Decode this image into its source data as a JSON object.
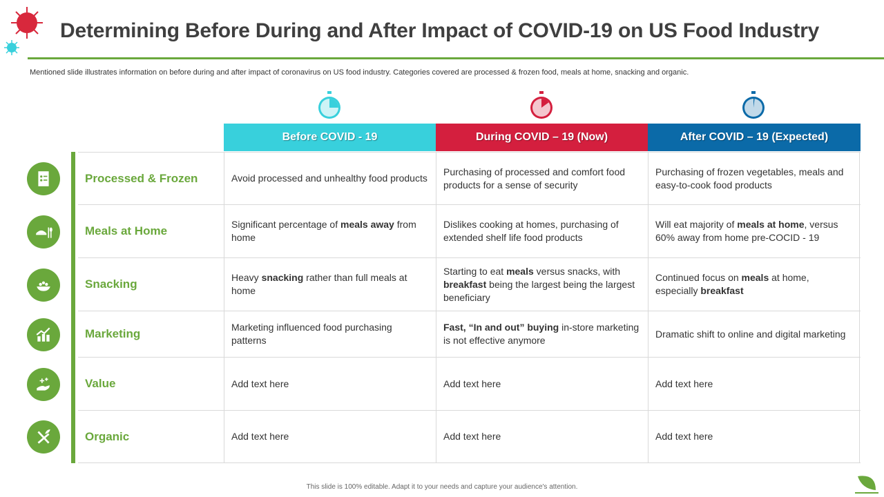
{
  "title": "Determining Before During and After Impact of COVID-19 on US Food Industry",
  "subtitle": "Mentioned slide illustrates information on before during and after impact of coronavirus on US food industry. Categories covered are processed & frozen food, meals at home, snacking and organic.",
  "colors": {
    "accent": "#6aa83c",
    "before": "#38d0dc",
    "during": "#d41f3e",
    "after": "#0b6aa8"
  },
  "headers": [
    {
      "label": "Before COVID - 19",
      "icon": "stopwatch-icon"
    },
    {
      "label": "During COVID – 19 (Now)",
      "icon": "stopwatch-icon"
    },
    {
      "label": "After COVID – 19 (Expected)",
      "icon": "stopwatch-icon"
    }
  ],
  "rows": [
    {
      "category": "Processed & Frozen",
      "icon": "checklist-icon",
      "cells": [
        [
          {
            "t": "Avoid processed and unhealthy food products"
          }
        ],
        [
          {
            "t": "Purchasing of processed and comfort food products for a sense of security"
          }
        ],
        [
          {
            "t": "Purchasing of frozen vegetables, meals and easy-to-cook food products"
          }
        ]
      ]
    },
    {
      "category": "Meals at Home",
      "icon": "meal-icon",
      "cells": [
        [
          {
            "t": "Significant percentage of "
          },
          {
            "t": "meals away",
            "b": true
          },
          {
            "t": " from home"
          }
        ],
        [
          {
            "t": "Dislikes cooking at homes, purchasing of extended shelf life food products"
          }
        ],
        [
          {
            "t": "Will eat majority of "
          },
          {
            "t": "meals at home",
            "b": true
          },
          {
            "t": ", versus 60% away from home pre-COCID - 19"
          }
        ]
      ]
    },
    {
      "category": "Snacking",
      "icon": "snack-bowl-icon",
      "cells": [
        [
          {
            "t": "Heavy "
          },
          {
            "t": "snacking",
            "b": true
          },
          {
            "t": " rather than full meals at home"
          }
        ],
        [
          {
            "t": "Starting to eat "
          },
          {
            "t": "meals",
            "b": true
          },
          {
            "t": " versus snacks, with "
          },
          {
            "t": "breakfast",
            "b": true
          },
          {
            "t": " being the largest being the largest beneficiary"
          }
        ],
        [
          {
            "t": "Continued focus on "
          },
          {
            "t": "meals",
            "b": true
          },
          {
            "t": " at home, especially "
          },
          {
            "t": "breakfast",
            "b": true
          }
        ]
      ]
    },
    {
      "category": "Marketing",
      "icon": "growth-chart-icon",
      "cells": [
        [
          {
            "t": "Marketing influenced food purchasing patterns"
          }
        ],
        [
          {
            "t": "Fast, “In and out” buying",
            "b": true
          },
          {
            "t": " in-store marketing is not effective anymore"
          }
        ],
        [
          {
            "t": "Dramatic shift to online and digital marketing"
          }
        ]
      ]
    },
    {
      "category": "Value",
      "icon": "hand-sparkle-icon",
      "cells": [
        [
          {
            "t": "Add text here"
          }
        ],
        [
          {
            "t": "Add text here"
          }
        ],
        [
          {
            "t": "Add text here"
          }
        ]
      ]
    },
    {
      "category": "Organic",
      "icon": "organic-cutlery-icon",
      "cells": [
        [
          {
            "t": "Add text here"
          }
        ],
        [
          {
            "t": "Add text here"
          }
        ],
        [
          {
            "t": "Add text here"
          }
        ]
      ]
    }
  ],
  "footer": "This slide is 100% editable. Adapt it to your needs and capture your audience's attention."
}
